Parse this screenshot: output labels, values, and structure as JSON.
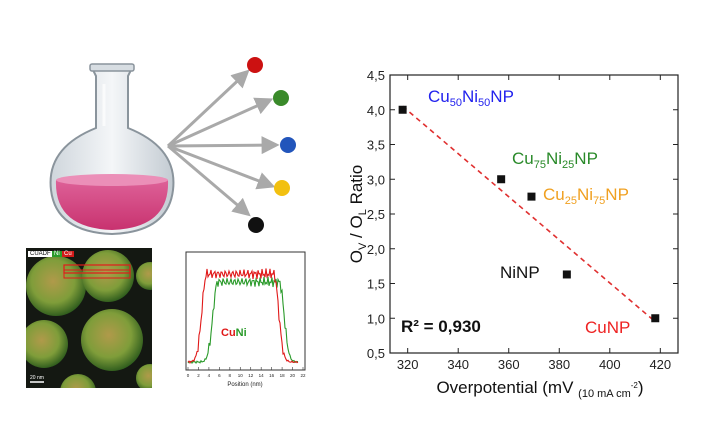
{
  "colors": {
    "dot_red": "#cc1111",
    "dot_green": "#3a8a2a",
    "dot_blue": "#2255bb",
    "dot_yellow": "#f2c010",
    "dot_black": "#111111",
    "fit_line": "#e03030",
    "line_green": "#2a9a2a",
    "line_red": "#e01818",
    "label_blue": "#2222ee",
    "label_green": "#2a8a2a",
    "label_orange": "#f0a020",
    "label_red": "#ee2222"
  },
  "em_image": {
    "tags": [
      "CUADF",
      "Ni",
      "Cu"
    ],
    "scale_text": "20 nm"
  },
  "line_profile": {
    "legend": "CuNi",
    "legend_parts": [
      "Cu",
      "Ni"
    ],
    "xlabel": "Position (nm)",
    "x_ticks": [
      "0",
      "2",
      "4",
      "6",
      "8",
      "10",
      "12",
      "14",
      "16",
      "18",
      "20",
      "22"
    ]
  },
  "chart_data": {
    "type": "scatter",
    "title": "",
    "xlabel": "Overpotential (mV",
    "xlabel_sub": "(10 mA cm",
    "xlabel_sup": "-2",
    "xlabel_close": ")",
    "ylabel": "OV / OL Ratio",
    "ylabel_parts": [
      "O",
      "V",
      " / O",
      "L",
      " Ratio"
    ],
    "xlim": [
      313,
      427
    ],
    "ylim": [
      0.5,
      4.5
    ],
    "x_ticks": [
      320,
      340,
      360,
      380,
      400,
      420
    ],
    "y_ticks": [
      0.5,
      1.0,
      1.5,
      2.0,
      2.5,
      3.0,
      3.5,
      4.0,
      4.5
    ],
    "y_tick_labels": [
      "0,5",
      "1,0",
      "1,5",
      "2,0",
      "2,5",
      "3,0",
      "3,5",
      "4,0",
      "4,5"
    ],
    "points": [
      {
        "x": 318,
        "y": 4.0
      },
      {
        "x": 357,
        "y": 3.0
      },
      {
        "x": 369,
        "y": 2.75
      },
      {
        "x": 383,
        "y": 1.63
      },
      {
        "x": 418,
        "y": 1.0
      }
    ],
    "fit_line": {
      "x": [
        318,
        418
      ],
      "y": [
        4.05,
        0.95
      ]
    },
    "r2_label": "R² = 0,930",
    "sample_labels": [
      {
        "parts": [
          "Cu",
          "50",
          "Ni",
          "50",
          "NP"
        ],
        "color": "#2222ee"
      },
      {
        "parts": [
          "Cu",
          "75",
          "Ni",
          "25",
          "NP"
        ],
        "color": "#2a8a2a"
      },
      {
        "parts": [
          "Cu",
          "25",
          "Ni",
          "75",
          "NP"
        ],
        "color": "#f0a020"
      },
      {
        "parts": [
          "NiNP"
        ],
        "color": "#111111"
      },
      {
        "parts": [
          "CuNP"
        ],
        "color": "#ee2222"
      }
    ]
  }
}
